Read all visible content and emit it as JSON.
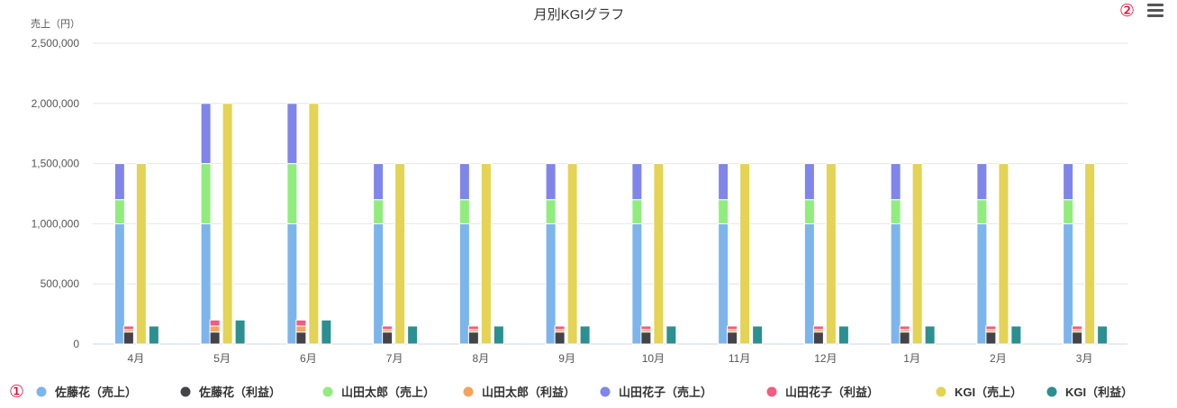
{
  "chart_data": {
    "type": "bar",
    "title": "月別KGIグラフ",
    "ylabel": "売上（円）",
    "ylim": [
      0,
      2500000
    ],
    "yticks": [
      "0",
      "500,000",
      "1,000,000",
      "1,500,000",
      "2,000,000",
      "2,500,000"
    ],
    "grid": true,
    "legend_position": "bottom",
    "categories": [
      "4月",
      "5月",
      "6月",
      "7月",
      "8月",
      "9月",
      "10月",
      "11月",
      "12月",
      "1月",
      "2月",
      "3月"
    ],
    "series": [
      {
        "name": "佐藤花（売上）",
        "stack": "sales",
        "color": "#7cb5ec",
        "values": [
          1000000,
          1000000,
          1000000,
          1000000,
          1000000,
          1000000,
          1000000,
          1000000,
          1000000,
          1000000,
          1000000,
          1000000
        ]
      },
      {
        "name": "佐藤花（利益）",
        "stack": "profit",
        "color": "#434348",
        "values": [
          100000,
          100000,
          100000,
          100000,
          100000,
          100000,
          100000,
          100000,
          100000,
          100000,
          100000,
          100000
        ]
      },
      {
        "name": "山田太郎（売上）",
        "stack": "sales",
        "color": "#90ed7d",
        "values": [
          200000,
          500000,
          500000,
          200000,
          200000,
          200000,
          200000,
          200000,
          200000,
          200000,
          200000,
          200000
        ]
      },
      {
        "name": "山田太郎（利益）",
        "stack": "profit",
        "color": "#f7a35c",
        "values": [
          20000,
          50000,
          50000,
          20000,
          20000,
          20000,
          20000,
          20000,
          20000,
          20000,
          20000,
          20000
        ]
      },
      {
        "name": "山田花子（売上）",
        "stack": "sales",
        "color": "#8085e9",
        "values": [
          300000,
          500000,
          500000,
          300000,
          300000,
          300000,
          300000,
          300000,
          300000,
          300000,
          300000,
          300000
        ]
      },
      {
        "name": "山田花子（利益）",
        "stack": "profit",
        "color": "#f15c80",
        "values": [
          30000,
          50000,
          50000,
          30000,
          30000,
          30000,
          30000,
          30000,
          30000,
          30000,
          30000,
          30000
        ]
      },
      {
        "name": "KGI（売上）",
        "stack": "kgi_sales",
        "color": "#e4d354",
        "values": [
          1500000,
          2000000,
          2000000,
          1500000,
          1500000,
          1500000,
          1500000,
          1500000,
          1500000,
          1500000,
          1500000,
          1500000
        ]
      },
      {
        "name": "KGI（利益）",
        "stack": "kgi_profit",
        "color": "#2b908f",
        "values": [
          150000,
          200000,
          200000,
          150000,
          150000,
          150000,
          150000,
          150000,
          150000,
          150000,
          150000,
          150000
        ]
      }
    ]
  },
  "annotations": {
    "marker_legend": "①",
    "marker_menu": "②"
  },
  "menu_icon": "hamburger-menu-icon"
}
